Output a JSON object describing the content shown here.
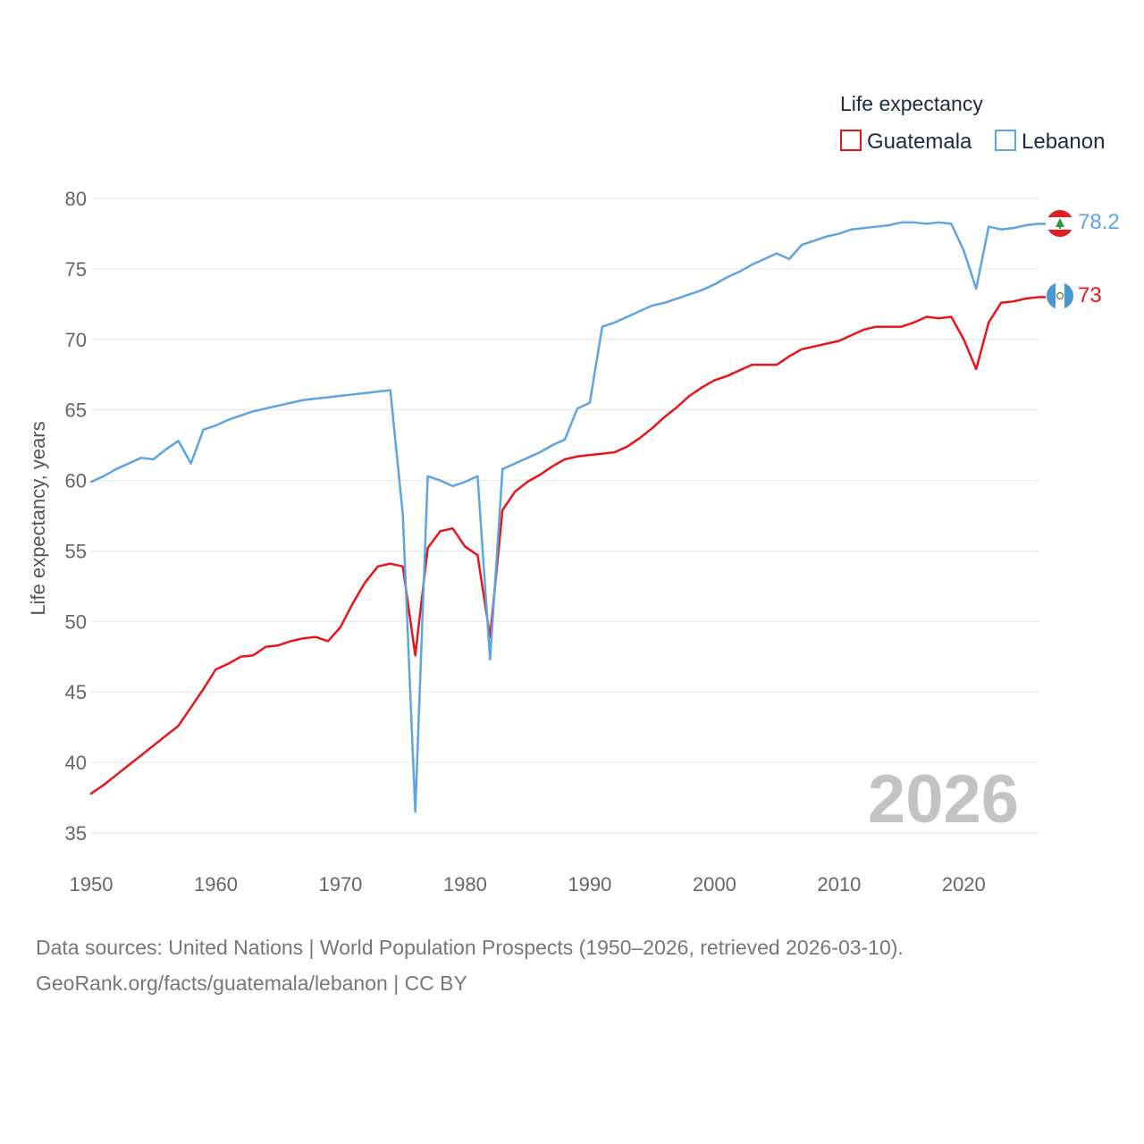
{
  "legend_title": "Life expectancy",
  "colors": {
    "guatemala": "#e8141a",
    "lebanon": "#5da4e3",
    "grid": "#e6e6e6"
  },
  "footer": {
    "sources": "Data sources: United Nations | World Population Prospects (1950–2026, retrieved 2026-03-10).",
    "credit": "GeoRank.org/facts/guatemala/lebanon | CC BY"
  },
  "chart_data": {
    "type": "line",
    "ylabel": "Life expectancy, years",
    "xlabel": "",
    "xlim": [
      1950,
      2026
    ],
    "ylim": [
      35,
      80
    ],
    "xticks": [
      1950,
      1960,
      1970,
      1980,
      1990,
      2000,
      2010,
      2020
    ],
    "yticks": [
      35,
      40,
      45,
      50,
      55,
      60,
      65,
      70,
      75,
      80
    ],
    "year_label": "2026",
    "x": [
      1950,
      1951,
      1952,
      1953,
      1954,
      1955,
      1956,
      1957,
      1958,
      1959,
      1960,
      1961,
      1962,
      1963,
      1964,
      1965,
      1966,
      1967,
      1968,
      1969,
      1970,
      1971,
      1972,
      1973,
      1974,
      1975,
      1976,
      1977,
      1978,
      1979,
      1980,
      1981,
      1982,
      1983,
      1984,
      1985,
      1986,
      1987,
      1988,
      1989,
      1990,
      1991,
      1992,
      1993,
      1994,
      1995,
      1996,
      1997,
      1998,
      1999,
      2000,
      2001,
      2002,
      2003,
      2004,
      2005,
      2006,
      2007,
      2008,
      2009,
      2010,
      2011,
      2012,
      2013,
      2014,
      2015,
      2016,
      2017,
      2018,
      2019,
      2020,
      2021,
      2022,
      2023,
      2024,
      2025,
      2026
    ],
    "series": [
      {
        "name": "Guatemala",
        "end_label": "73",
        "values": [
          37.8,
          38.4,
          39.1,
          39.8,
          40.5,
          41.2,
          41.9,
          42.6,
          43.9,
          45.2,
          46.6,
          47.0,
          47.5,
          47.6,
          48.2,
          48.3,
          48.6,
          48.8,
          48.9,
          48.6,
          49.6,
          51.3,
          52.8,
          53.9,
          54.1,
          53.9,
          47.6,
          55.2,
          56.4,
          56.6,
          55.3,
          54.7,
          48.9,
          57.9,
          59.2,
          59.9,
          60.4,
          61.0,
          61.5,
          61.7,
          61.8,
          61.9,
          62.0,
          62.4,
          63.0,
          63.7,
          64.5,
          65.2,
          66.0,
          66.6,
          67.1,
          67.4,
          67.8,
          68.2,
          68.2,
          68.2,
          68.8,
          69.3,
          69.5,
          69.7,
          69.9,
          70.3,
          70.7,
          70.9,
          70.9,
          70.9,
          71.2,
          71.6,
          71.5,
          71.6,
          70.0,
          67.9,
          71.2,
          72.6,
          72.7,
          72.9,
          73.0
        ]
      },
      {
        "name": "Lebanon",
        "end_label": "78.2",
        "values": [
          59.9,
          60.3,
          60.8,
          61.2,
          61.6,
          61.5,
          62.2,
          62.8,
          61.2,
          63.6,
          63.9,
          64.3,
          64.6,
          64.9,
          65.1,
          65.3,
          65.5,
          65.7,
          65.8,
          65.9,
          66.0,
          66.1,
          66.2,
          66.3,
          66.4,
          57.6,
          36.5,
          60.3,
          60.0,
          59.6,
          59.9,
          60.3,
          47.3,
          60.8,
          61.2,
          61.6,
          62.0,
          62.5,
          62.9,
          65.1,
          65.5,
          70.9,
          71.2,
          71.6,
          72.0,
          72.4,
          72.6,
          72.9,
          73.2,
          73.5,
          73.9,
          74.4,
          74.8,
          75.3,
          75.7,
          76.1,
          75.7,
          76.7,
          77.0,
          77.3,
          77.5,
          77.8,
          77.9,
          78.0,
          78.1,
          78.3,
          78.3,
          78.2,
          78.3,
          78.2,
          76.3,
          73.6,
          78.0,
          77.8,
          77.9,
          78.1,
          78.2
        ]
      }
    ]
  }
}
